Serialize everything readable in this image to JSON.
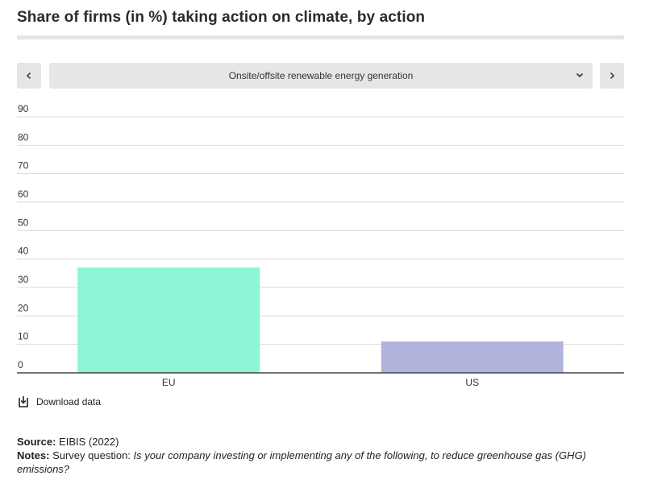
{
  "title": "Share of firms (in %) taking action on climate, by action",
  "selector": {
    "value": "Onsite/offsite renewable energy generation",
    "prev_icon": "chevron-left-icon",
    "next_icon": "chevron-right-icon",
    "dropdown_icon": "chevron-down-icon"
  },
  "download": {
    "label": "Download data",
    "icon": "download-icon"
  },
  "footer": {
    "source_label": "Source:",
    "source_text": "EIBIS (2022)",
    "notes_label": "Notes:",
    "notes_prefix": "Survey question:",
    "notes_question": "Is your company investing or implementing any of the following, to reduce greenhouse gas (GHG) emissions?"
  },
  "chart_data": {
    "type": "bar",
    "categories": [
      "EU",
      "US"
    ],
    "values": [
      37,
      11
    ],
    "colors": [
      "#8cf5d6",
      "#b0b3dc"
    ],
    "title": "Share of firms (in %) taking action on climate, by action",
    "xlabel": "",
    "ylabel": "",
    "ylim": [
      0,
      90
    ],
    "yticks": [
      0,
      10,
      20,
      30,
      40,
      50,
      60,
      70,
      80,
      90
    ],
    "grid": true
  }
}
